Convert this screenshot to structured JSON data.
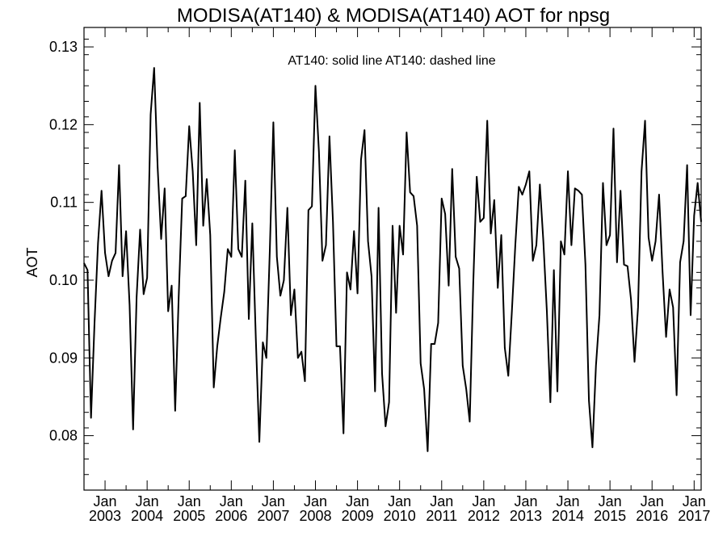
{
  "chart_data": {
    "type": "line",
    "title": "MODISA(AT140) & MODISA(AT140)  AOT for npsg",
    "xlabel": "",
    "ylabel": "AOT",
    "annotation": "AT140: solid line   AT140: dashed line",
    "grid": false,
    "xlim": [
      "2002-07",
      "2017-03"
    ],
    "ylim": [
      0.073,
      0.1325
    ],
    "y_ticks": [
      "0.08",
      "0.09",
      "0.10",
      "0.11",
      "0.12",
      "0.13"
    ],
    "x_ticks": [
      {
        "month": "Jan",
        "year": "2003",
        "date": "2003-01"
      },
      {
        "month": "Jan",
        "year": "2004",
        "date": "2004-01"
      },
      {
        "month": "Jan",
        "year": "2005",
        "date": "2005-01"
      },
      {
        "month": "Jan",
        "year": "2006",
        "date": "2006-01"
      },
      {
        "month": "Jan",
        "year": "2007",
        "date": "2007-01"
      },
      {
        "month": "Jan",
        "year": "2008",
        "date": "2008-01"
      },
      {
        "month": "Jan",
        "year": "2009",
        "date": "2009-01"
      },
      {
        "month": "Jan",
        "year": "2010",
        "date": "2010-01"
      },
      {
        "month": "Jan",
        "year": "2011",
        "date": "2011-01"
      },
      {
        "month": "Jan",
        "year": "2012",
        "date": "2012-01"
      },
      {
        "month": "Jan",
        "year": "2013",
        "date": "2013-01"
      },
      {
        "month": "Jan",
        "year": "2014",
        "date": "2014-01"
      },
      {
        "month": "Jan",
        "year": "2015",
        "date": "2015-01"
      },
      {
        "month": "Jan",
        "year": "2016",
        "date": "2016-01"
      },
      {
        "month": "Jan",
        "year": "2017",
        "date": "2017-01"
      }
    ],
    "series": [
      {
        "style": "solid",
        "color": "#000000",
        "points": [
          [
            "2002-07",
            0.1022
          ],
          [
            "2002-08",
            0.1013
          ],
          [
            "2002-09",
            0.0823
          ],
          [
            "2002-10",
            0.0945
          ],
          [
            "2002-11",
            0.1048
          ],
          [
            "2002-12",
            0.1115
          ],
          [
            "2003-01",
            0.1035
          ],
          [
            "2003-02",
            0.1005
          ],
          [
            "2003-03",
            0.1025
          ],
          [
            "2003-04",
            0.1035
          ],
          [
            "2003-05",
            0.1148
          ],
          [
            "2003-06",
            0.1005
          ],
          [
            "2003-07",
            0.1063
          ],
          [
            "2003-08",
            0.0968
          ],
          [
            "2003-09",
            0.0808
          ],
          [
            "2003-10",
            0.0978
          ],
          [
            "2003-11",
            0.1065
          ],
          [
            "2003-12",
            0.0982
          ],
          [
            "2004-01",
            0.1003
          ],
          [
            "2004-02",
            0.1213
          ],
          [
            "2004-03",
            0.1273
          ],
          [
            "2004-04",
            0.1145
          ],
          [
            "2004-05",
            0.1053
          ],
          [
            "2004-06",
            0.1118
          ],
          [
            "2004-07",
            0.096
          ],
          [
            "2004-08",
            0.0993
          ],
          [
            "2004-09",
            0.0832
          ],
          [
            "2004-10",
            0.0978
          ],
          [
            "2004-11",
            0.1105
          ],
          [
            "2004-12",
            0.1108
          ],
          [
            "2005-01",
            0.1198
          ],
          [
            "2005-02",
            0.114
          ],
          [
            "2005-03",
            0.1045
          ],
          [
            "2005-04",
            0.1228
          ],
          [
            "2005-05",
            0.107
          ],
          [
            "2005-06",
            0.113
          ],
          [
            "2005-07",
            0.1058
          ],
          [
            "2005-08",
            0.0862
          ],
          [
            "2005-09",
            0.0915
          ],
          [
            "2005-10",
            0.0952
          ],
          [
            "2005-11",
            0.0985
          ],
          [
            "2005-12",
            0.104
          ],
          [
            "2006-01",
            0.103
          ],
          [
            "2006-02",
            0.1167
          ],
          [
            "2006-03",
            0.104
          ],
          [
            "2006-04",
            0.103
          ],
          [
            "2006-05",
            0.1128
          ],
          [
            "2006-06",
            0.095
          ],
          [
            "2006-07",
            0.1073
          ],
          [
            "2006-08",
            0.0925
          ],
          [
            "2006-09",
            0.0792
          ],
          [
            "2006-10",
            0.092
          ],
          [
            "2006-11",
            0.09
          ],
          [
            "2006-12",
            0.104
          ],
          [
            "2007-01",
            0.1203
          ],
          [
            "2007-02",
            0.103
          ],
          [
            "2007-03",
            0.098
          ],
          [
            "2007-04",
            0.1
          ],
          [
            "2007-05",
            0.1093
          ],
          [
            "2007-06",
            0.0955
          ],
          [
            "2007-07",
            0.0988
          ],
          [
            "2007-08",
            0.09
          ],
          [
            "2007-09",
            0.0908
          ],
          [
            "2007-10",
            0.087
          ],
          [
            "2007-11",
            0.109
          ],
          [
            "2007-12",
            0.1095
          ],
          [
            "2008-01",
            0.125
          ],
          [
            "2008-02",
            0.1165
          ],
          [
            "2008-03",
            0.1025
          ],
          [
            "2008-04",
            0.1045
          ],
          [
            "2008-05",
            0.1185
          ],
          [
            "2008-06",
            0.1075
          ],
          [
            "2008-07",
            0.0915
          ],
          [
            "2008-08",
            0.0915
          ],
          [
            "2008-09",
            0.0803
          ],
          [
            "2008-10",
            0.101
          ],
          [
            "2008-11",
            0.0988
          ],
          [
            "2008-12",
            0.1063
          ],
          [
            "2009-01",
            0.0983
          ],
          [
            "2009-02",
            0.1155
          ],
          [
            "2009-03",
            0.1193
          ],
          [
            "2009-04",
            0.105
          ],
          [
            "2009-05",
            0.1005
          ],
          [
            "2009-06",
            0.0857
          ],
          [
            "2009-07",
            0.1093
          ],
          [
            "2009-08",
            0.088
          ],
          [
            "2009-09",
            0.0812
          ],
          [
            "2009-10",
            0.0843
          ],
          [
            "2009-11",
            0.107
          ],
          [
            "2009-12",
            0.0958
          ],
          [
            "2010-01",
            0.107
          ],
          [
            "2010-02",
            0.1033
          ],
          [
            "2010-03",
            0.119
          ],
          [
            "2010-04",
            0.1113
          ],
          [
            "2010-05",
            0.1108
          ],
          [
            "2010-06",
            0.107
          ],
          [
            "2010-07",
            0.0893
          ],
          [
            "2010-08",
            0.086
          ],
          [
            "2010-09",
            0.078
          ],
          [
            "2010-10",
            0.0918
          ],
          [
            "2010-11",
            0.0918
          ],
          [
            "2010-12",
            0.0945
          ],
          [
            "2011-01",
            0.1105
          ],
          [
            "2011-02",
            0.1085
          ],
          [
            "2011-03",
            0.0993
          ],
          [
            "2011-04",
            0.1143
          ],
          [
            "2011-05",
            0.103
          ],
          [
            "2011-06",
            0.1015
          ],
          [
            "2011-07",
            0.089
          ],
          [
            "2011-08",
            0.086
          ],
          [
            "2011-09",
            0.0818
          ],
          [
            "2011-10",
            0.0995
          ],
          [
            "2011-11",
            0.1133
          ],
          [
            "2011-12",
            0.1075
          ],
          [
            "2012-01",
            0.108
          ],
          [
            "2012-02",
            0.1205
          ],
          [
            "2012-03",
            0.106
          ],
          [
            "2012-04",
            0.1103
          ],
          [
            "2012-05",
            0.099
          ],
          [
            "2012-06",
            0.1058
          ],
          [
            "2012-07",
            0.0913
          ],
          [
            "2012-08",
            0.0877
          ],
          [
            "2012-09",
            0.0958
          ],
          [
            "2012-10",
            0.1045
          ],
          [
            "2012-11",
            0.112
          ],
          [
            "2012-12",
            0.111
          ],
          [
            "2013-01",
            0.1123
          ],
          [
            "2013-02",
            0.114
          ],
          [
            "2013-03",
            0.1025
          ],
          [
            "2013-04",
            0.1045
          ],
          [
            "2013-05",
            0.1123
          ],
          [
            "2013-06",
            0.105
          ],
          [
            "2013-07",
            0.096
          ],
          [
            "2013-08",
            0.0843
          ],
          [
            "2013-09",
            0.1013
          ],
          [
            "2013-10",
            0.0857
          ],
          [
            "2013-11",
            0.105
          ],
          [
            "2013-12",
            0.1033
          ],
          [
            "2014-01",
            0.114
          ],
          [
            "2014-02",
            0.1045
          ],
          [
            "2014-03",
            0.1118
          ],
          [
            "2014-04",
            0.1115
          ],
          [
            "2014-05",
            0.111
          ],
          [
            "2014-06",
            0.102
          ],
          [
            "2014-07",
            0.0845
          ],
          [
            "2014-08",
            0.0785
          ],
          [
            "2014-09",
            0.089
          ],
          [
            "2014-10",
            0.0955
          ],
          [
            "2014-11",
            0.1125
          ],
          [
            "2014-12",
            0.1045
          ],
          [
            "2015-01",
            0.1058
          ],
          [
            "2015-02",
            0.1195
          ],
          [
            "2015-03",
            0.1023
          ],
          [
            "2015-04",
            0.1115
          ],
          [
            "2015-05",
            0.102
          ],
          [
            "2015-06",
            0.1018
          ],
          [
            "2015-07",
            0.0975
          ],
          [
            "2015-08",
            0.0895
          ],
          [
            "2015-09",
            0.0965
          ],
          [
            "2015-10",
            0.114
          ],
          [
            "2015-11",
            0.1205
          ],
          [
            "2015-12",
            0.1055
          ],
          [
            "2016-01",
            0.1025
          ],
          [
            "2016-02",
            0.105
          ],
          [
            "2016-03",
            0.111
          ],
          [
            "2016-04",
            0.101
          ],
          [
            "2016-05",
            0.0927
          ],
          [
            "2016-06",
            0.0988
          ],
          [
            "2016-07",
            0.0965
          ],
          [
            "2016-08",
            0.0852
          ],
          [
            "2016-09",
            0.1023
          ],
          [
            "2016-10",
            0.105
          ],
          [
            "2016-11",
            0.1148
          ],
          [
            "2016-12",
            0.0955
          ],
          [
            "2017-01",
            0.1083
          ],
          [
            "2017-02",
            0.1125
          ],
          [
            "2017-03",
            0.1075
          ]
        ]
      }
    ]
  }
}
